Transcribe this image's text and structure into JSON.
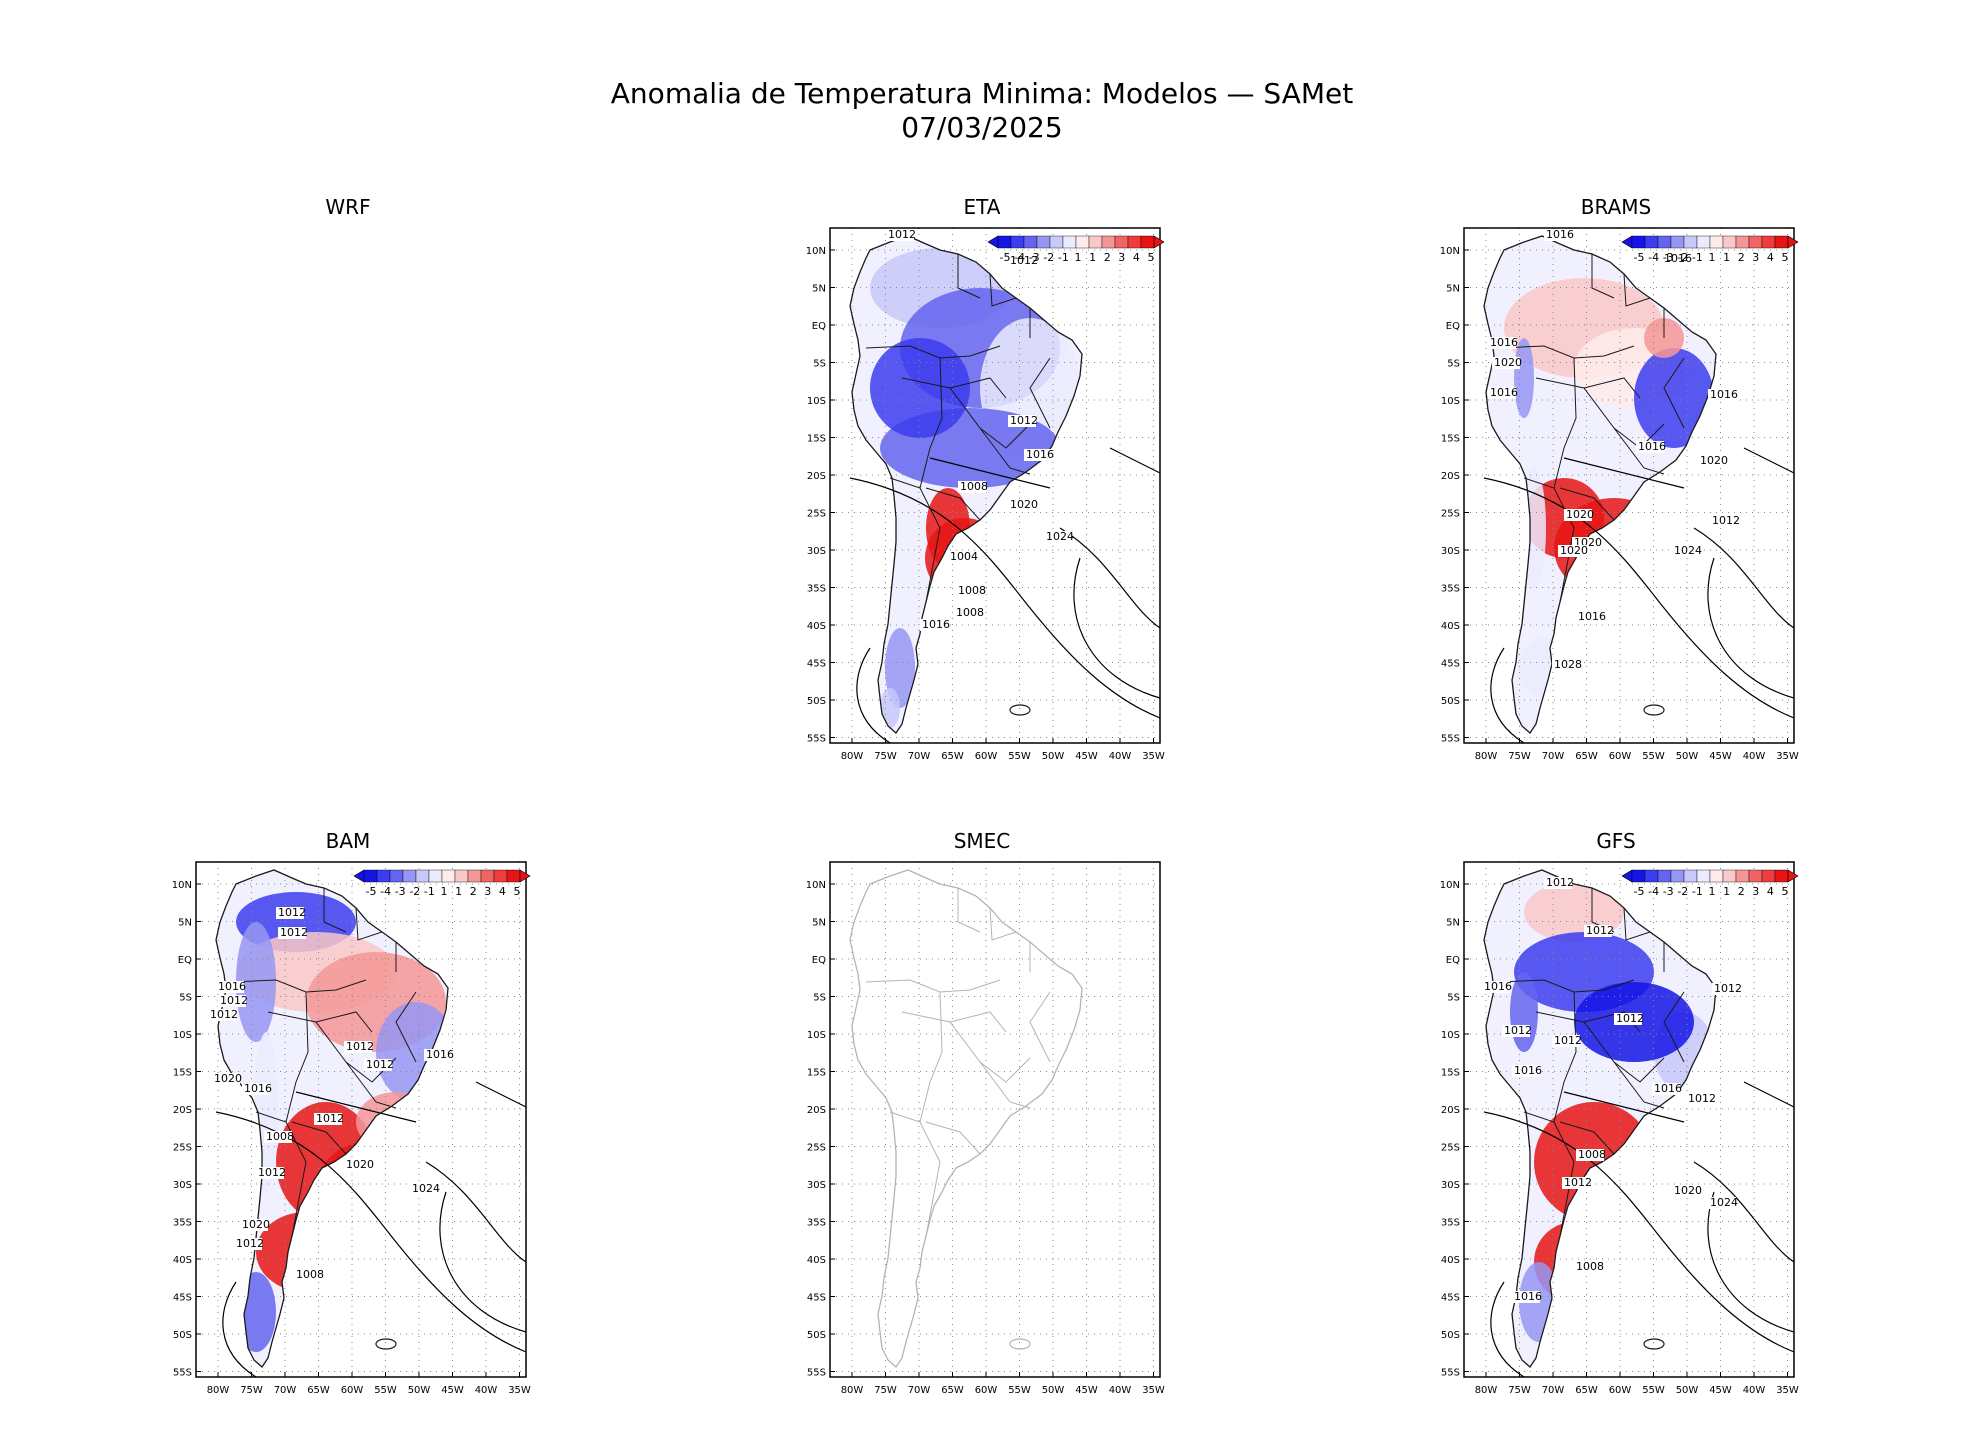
{
  "title": {
    "line1": "Anomalia de Temperatura Minima: Modelos — SAMet",
    "line2": "07/03/2025"
  },
  "lat_labels": [
    "10N",
    "5N",
    "EQ",
    "5S",
    "10S",
    "15S",
    "20S",
    "25S",
    "30S",
    "35S",
    "40S",
    "45S",
    "50S",
    "55S"
  ],
  "lon_labels": [
    "80W",
    "75W",
    "70W",
    "65W",
    "60W",
    "55W",
    "50W",
    "45W",
    "40W",
    "35W"
  ],
  "colorbar_labels": [
    "-5",
    "-4",
    "-3",
    "-2",
    "-1",
    "1",
    "1",
    "2",
    "3",
    "4",
    "5"
  ],
  "colors": {
    "neg": [
      "#1414e6",
      "#3c3cf0",
      "#6464f0",
      "#9696f5",
      "#c8c8fa",
      "#ebebff"
    ],
    "pos": [
      "#ffebeb",
      "#fac8c8",
      "#f59696",
      "#f06464",
      "#f03c3c",
      "#e61414"
    ],
    "coast": "#1a1a1a",
    "empty_coast": "#b4b4b4"
  },
  "panels": [
    {
      "id": "wrf",
      "title": "WRF",
      "has_map": false
    },
    {
      "id": "eta",
      "title": "ETA",
      "has_map": true,
      "has_data": true,
      "isobars": [
        "1012",
        "1012",
        "1012",
        "1016",
        "1008",
        "1004",
        "1008",
        "1008",
        "1016",
        "1020",
        "1024"
      ]
    },
    {
      "id": "brams",
      "title": "BRAMS",
      "has_map": true,
      "has_data": true,
      "isobars": [
        "1016",
        "1016",
        "1016",
        "1020",
        "1016",
        "1016",
        "1016",
        "1020",
        "1020",
        "1020",
        "1020",
        "1024",
        "1012",
        "1016",
        "1028"
      ]
    },
    {
      "id": "bam",
      "title": "BAM",
      "has_map": true,
      "has_data": true,
      "isobars": [
        "1012",
        "1012",
        "1016",
        "1012",
        "1012",
        "1012",
        "1012",
        "1016",
        "1020",
        "1016",
        "1012",
        "1008",
        "1012",
        "1020",
        "1024",
        "1020",
        "1012",
        "1008"
      ]
    },
    {
      "id": "smec",
      "title": "SMEC",
      "has_map": true,
      "has_data": false,
      "isobars": []
    },
    {
      "id": "gfs",
      "title": "GFS",
      "has_map": true,
      "has_data": true,
      "isobars": [
        "1012",
        "1012",
        "1016",
        "1012",
        "1012",
        "1012",
        "1012",
        "1016",
        "1016",
        "1008",
        "1012",
        "1012",
        "1020",
        "1024",
        "1008",
        "1016"
      ]
    }
  ]
}
